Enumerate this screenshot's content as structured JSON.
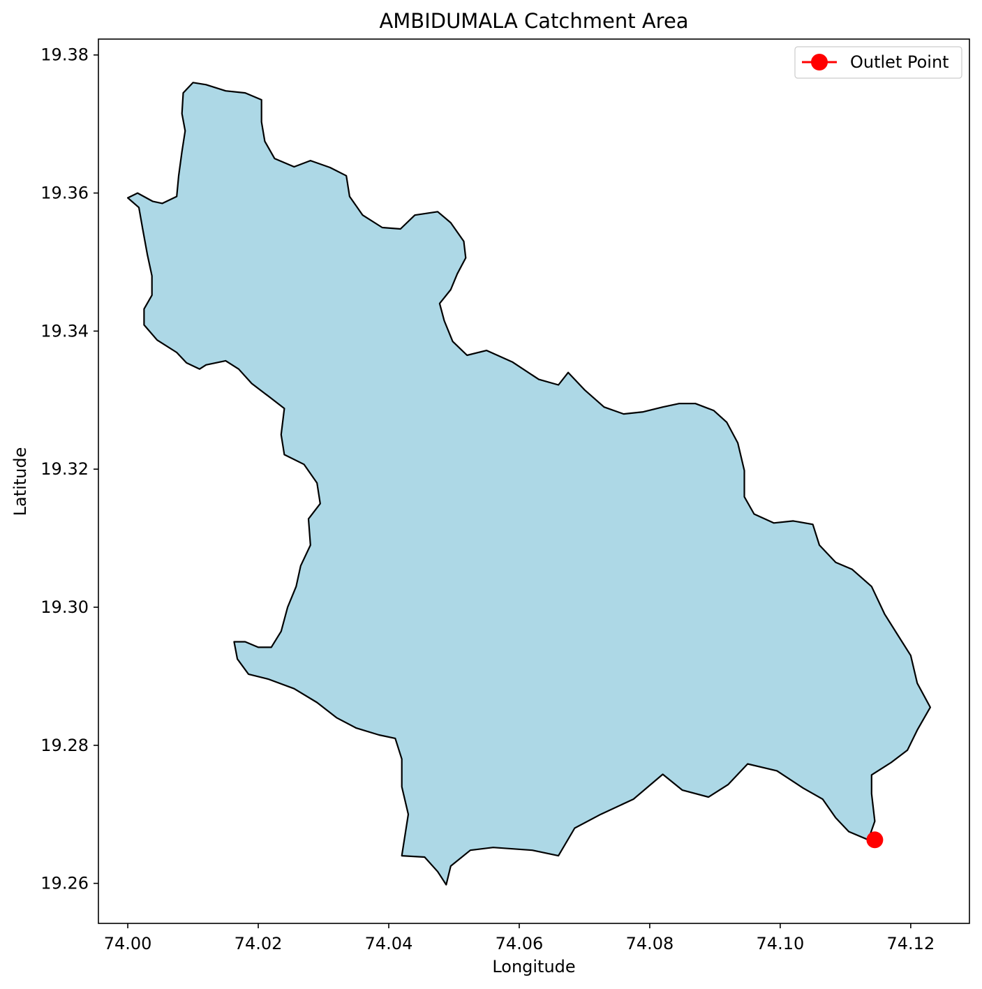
{
  "chart_data": {
    "type": "map",
    "title": "AMBIDUMALA Catchment Area",
    "xlabel": "Longitude",
    "ylabel": "Latitude",
    "xlim": [
      73.9955,
      74.129
    ],
    "ylim": [
      19.2542,
      19.3823
    ],
    "xticks": [
      74.0,
      74.02,
      74.04,
      74.06,
      74.08,
      74.1,
      74.12
    ],
    "xtick_labels": [
      "74.00",
      "74.02",
      "74.04",
      "74.06",
      "74.08",
      "74.10",
      "74.12"
    ],
    "yticks": [
      19.26,
      19.28,
      19.3,
      19.32,
      19.34,
      19.36,
      19.38
    ],
    "ytick_labels": [
      "19.26",
      "19.28",
      "19.30",
      "19.32",
      "19.34",
      "19.36",
      "19.38"
    ],
    "grid": false,
    "legend": {
      "placement": "top-right",
      "entries": [
        {
          "label": "Outlet Point",
          "color": "#ff0000",
          "marker": "circle"
        }
      ]
    },
    "catchment": {
      "fill_color": "#add8e6",
      "edge_color": "#000000",
      "boundary_lonlat": [
        [
          74.0,
          19.3593
        ],
        [
          74.0017,
          19.3579
        ],
        [
          74.0023,
          19.3547
        ],
        [
          74.003,
          19.3511
        ],
        [
          74.0037,
          19.348
        ],
        [
          74.0037,
          19.3452
        ],
        [
          74.0025,
          19.3432
        ],
        [
          74.0025,
          19.3409
        ],
        [
          74.0045,
          19.3387
        ],
        [
          74.0075,
          19.3369
        ],
        [
          74.009,
          19.3354
        ],
        [
          74.011,
          19.3345
        ],
        [
          74.012,
          19.3351
        ],
        [
          74.015,
          19.3357
        ],
        [
          74.017,
          19.3345
        ],
        [
          74.019,
          19.3324
        ],
        [
          74.0215,
          19.3306
        ],
        [
          74.024,
          19.3288
        ],
        [
          74.0235,
          19.325
        ],
        [
          74.024,
          19.3221
        ],
        [
          74.027,
          19.3207
        ],
        [
          74.029,
          19.318
        ],
        [
          74.0295,
          19.315
        ],
        [
          74.0277,
          19.3128
        ],
        [
          74.028,
          19.309
        ],
        [
          74.0265,
          19.306
        ],
        [
          74.0258,
          19.303
        ],
        [
          74.0245,
          19.3
        ],
        [
          74.0235,
          19.2965
        ],
        [
          74.022,
          19.2942
        ],
        [
          74.02,
          19.2942
        ],
        [
          74.018,
          19.295
        ],
        [
          74.0163,
          19.295
        ],
        [
          74.0168,
          19.2925
        ],
        [
          74.0185,
          19.2903
        ],
        [
          74.0215,
          19.2896
        ],
        [
          74.0255,
          19.2882
        ],
        [
          74.029,
          19.2862
        ],
        [
          74.032,
          19.284
        ],
        [
          74.035,
          19.2825
        ],
        [
          74.0385,
          19.2815
        ],
        [
          74.041,
          19.281
        ],
        [
          74.042,
          19.278
        ],
        [
          74.042,
          19.274
        ],
        [
          74.043,
          19.27
        ],
        [
          74.042,
          19.264
        ],
        [
          74.0455,
          19.2638
        ],
        [
          74.0475,
          19.2617
        ],
        [
          74.0488,
          19.2598
        ],
        [
          74.0495,
          19.2625
        ],
        [
          74.0525,
          19.2648
        ],
        [
          74.056,
          19.2652
        ],
        [
          74.062,
          19.2648
        ],
        [
          74.066,
          19.264
        ],
        [
          74.0685,
          19.268
        ],
        [
          74.0725,
          19.27
        ],
        [
          74.0775,
          19.2722
        ],
        [
          74.082,
          19.2758
        ],
        [
          74.085,
          19.2735
        ],
        [
          74.089,
          19.2725
        ],
        [
          74.092,
          19.2743
        ],
        [
          74.095,
          19.2773
        ],
        [
          74.0995,
          19.2763
        ],
        [
          74.1035,
          19.2738
        ],
        [
          74.1065,
          19.2722
        ],
        [
          74.1085,
          19.2695
        ],
        [
          74.1105,
          19.2675
        ],
        [
          74.1135,
          19.2663
        ],
        [
          74.1145,
          19.269
        ],
        [
          74.114,
          19.273
        ],
        [
          74.114,
          19.2757
        ],
        [
          74.117,
          19.2775
        ],
        [
          74.1195,
          19.2793
        ],
        [
          74.121,
          19.2822
        ],
        [
          74.123,
          19.2855
        ],
        [
          74.121,
          19.289
        ],
        [
          74.12,
          19.293
        ],
        [
          74.118,
          19.296
        ],
        [
          74.116,
          19.299
        ],
        [
          74.114,
          19.303
        ],
        [
          74.111,
          19.3055
        ],
        [
          74.1085,
          19.3065
        ],
        [
          74.106,
          19.309
        ],
        [
          74.105,
          19.312
        ],
        [
          74.102,
          19.3125
        ],
        [
          74.099,
          19.3122
        ],
        [
          74.096,
          19.3135
        ],
        [
          74.0945,
          19.316
        ],
        [
          74.0945,
          19.3198
        ],
        [
          74.0935,
          19.3238
        ],
        [
          74.0918,
          19.3268
        ],
        [
          74.0898,
          19.3285
        ],
        [
          74.087,
          19.3295
        ],
        [
          74.0845,
          19.3295
        ],
        [
          74.082,
          19.329
        ],
        [
          74.079,
          19.3283
        ],
        [
          74.076,
          19.328
        ],
        [
          74.073,
          19.329
        ],
        [
          74.07,
          19.3315
        ],
        [
          74.0675,
          19.334
        ],
        [
          74.066,
          19.3322
        ],
        [
          74.063,
          19.333
        ],
        [
          74.059,
          19.3355
        ],
        [
          74.055,
          19.3372
        ],
        [
          74.052,
          19.3365
        ],
        [
          74.0498,
          19.3385
        ],
        [
          74.0485,
          19.3415
        ],
        [
          74.0478,
          19.344
        ],
        [
          74.0495,
          19.346
        ],
        [
          74.0505,
          19.3483
        ],
        [
          74.0518,
          19.3506
        ],
        [
          74.0515,
          19.353
        ],
        [
          74.0495,
          19.3557
        ],
        [
          74.0475,
          19.3573
        ],
        [
          74.044,
          19.3568
        ],
        [
          74.0418,
          19.3548
        ],
        [
          74.039,
          19.355
        ],
        [
          74.036,
          19.3568
        ],
        [
          74.034,
          19.3595
        ],
        [
          74.0335,
          19.3625
        ],
        [
          74.031,
          19.3637
        ],
        [
          74.028,
          19.3647
        ],
        [
          74.0255,
          19.3638
        ],
        [
          74.0225,
          19.365
        ],
        [
          74.021,
          19.3675
        ],
        [
          74.0205,
          19.3703
        ],
        [
          74.0205,
          19.3735
        ],
        [
          74.018,
          19.3745
        ],
        [
          74.015,
          19.3748
        ],
        [
          74.012,
          19.3757
        ],
        [
          74.01,
          19.376
        ],
        [
          74.0085,
          19.3745
        ],
        [
          74.0083,
          19.3715
        ],
        [
          74.0088,
          19.369
        ],
        [
          74.0083,
          19.366
        ],
        [
          74.0078,
          19.3625
        ],
        [
          74.0075,
          19.3595
        ],
        [
          74.0053,
          19.3585
        ],
        [
          74.0038,
          19.3588
        ],
        [
          74.0015,
          19.36
        ],
        [
          74.0,
          19.3593
        ]
      ]
    },
    "outlet_point": {
      "lon": 74.1145,
      "lat": 19.2663,
      "label": "Outlet Point"
    }
  }
}
